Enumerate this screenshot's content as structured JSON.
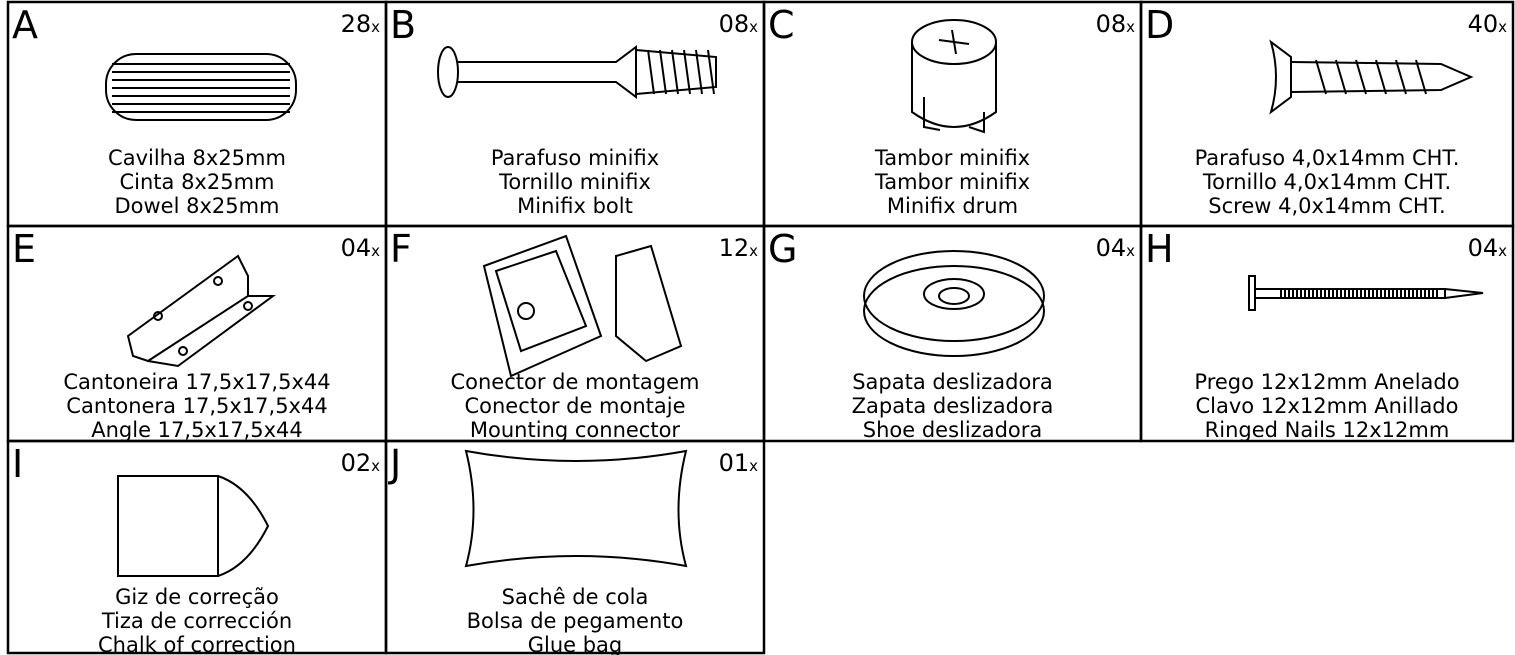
{
  "parts": [
    {
      "letter": "A",
      "count": "28",
      "suffix": "x",
      "lines": [
        "Cavilha 8x25mm",
        "Cinta 8x25mm",
        "Dowel 8x25mm"
      ]
    },
    {
      "letter": "B",
      "count": "08",
      "suffix": "x",
      "lines": [
        "Parafuso minifix",
        "Tornillo minifix",
        "Minifix bolt"
      ]
    },
    {
      "letter": "C",
      "count": "08",
      "suffix": "x",
      "lines": [
        "Tambor minifix",
        "Tambor minifix",
        "Minifix drum"
      ]
    },
    {
      "letter": "D",
      "count": "40",
      "suffix": "x",
      "lines": [
        "Parafuso 4,0x14mm CHT.",
        "Tornillo 4,0x14mm CHT.",
        "Screw 4,0x14mm CHT."
      ]
    },
    {
      "letter": "E",
      "count": "04",
      "suffix": "x",
      "lines": [
        "Cantoneira 17,5x17,5x44",
        "Cantonera 17,5x17,5x44",
        "Angle 17,5x17,5x44"
      ]
    },
    {
      "letter": "F",
      "count": "12",
      "suffix": "x",
      "lines": [
        "Conector de montagem",
        "Conector de montaje",
        "Mounting connector"
      ]
    },
    {
      "letter": "G",
      "count": "04",
      "suffix": "x",
      "lines": [
        "Sapata deslizadora",
        "Zapata deslizadora",
        "Shoe deslizadora"
      ]
    },
    {
      "letter": "H",
      "count": "04",
      "suffix": "x",
      "lines": [
        "Prego 12x12mm Anelado",
        "Clavo 12x12mm Anillado",
        "Ringed Nails 12x12mm"
      ]
    },
    {
      "letter": "I",
      "count": "02",
      "suffix": "x",
      "lines": [
        "Giz de correção",
        "Tiza de corrección",
        "Chalk of correction"
      ]
    },
    {
      "letter": "J",
      "count": "01",
      "suffix": "x",
      "lines": [
        "Sachê de cola",
        "Bolsa de pegamento",
        "Glue bag"
      ]
    }
  ]
}
